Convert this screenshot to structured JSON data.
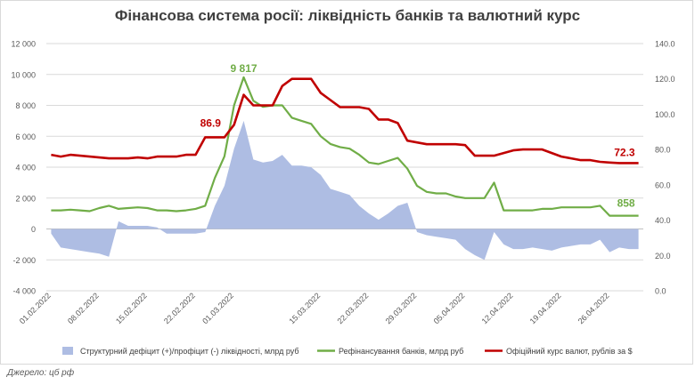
{
  "title": "Фінансова система росії: ліквідність банків та валютний курс",
  "source": "Джерело: цб рф",
  "chart_data": {
    "type": "line",
    "title": "Фінансова система росії: ліквідність банків та валютний курс",
    "x": [
      "01.02.2022",
      "02.02.2022",
      "03.02.2022",
      "04.02.2022",
      "07.02.2022",
      "08.02.2022",
      "09.02.2022",
      "10.02.2022",
      "11.02.2022",
      "14.02.2022",
      "15.02.2022",
      "16.02.2022",
      "17.02.2022",
      "18.02.2022",
      "21.02.2022",
      "22.02.2022",
      "24.02.2022",
      "25.02.2022",
      "28.02.2022",
      "01.03.2022",
      "02.03.2022",
      "03.03.2022",
      "04.03.2022",
      "05.03.2022",
      "09.03.2022",
      "10.03.2022",
      "11.03.2022",
      "14.03.2022",
      "15.03.2022",
      "16.03.2022",
      "17.03.2022",
      "18.03.2022",
      "21.03.2022",
      "22.03.2022",
      "23.03.2022",
      "24.03.2022",
      "25.03.2022",
      "28.03.2022",
      "29.03.2022",
      "30.03.2022",
      "31.03.2022",
      "01.04.2022",
      "04.04.2022",
      "05.04.2022",
      "06.04.2022",
      "07.04.2022",
      "08.04.2022",
      "11.04.2022",
      "12.04.2022",
      "13.04.2022",
      "14.04.2022",
      "15.04.2022",
      "18.04.2022",
      "19.04.2022",
      "20.04.2022",
      "21.04.2022",
      "22.04.2022",
      "25.04.2022",
      "26.04.2022",
      "27.04.2022",
      "28.04.2022",
      "29.04.2022"
    ],
    "x_tick_labels": [
      "01.02.2022",
      "08.02.2022",
      "15.02.2022",
      "22.02.2022",
      "01.03.2022",
      "08.03.2022",
      "15.03.2022",
      "22.03.2022",
      "29.03.2022",
      "05.04.2022",
      "12.04.2022",
      "19.04.2022",
      "26.04.2022"
    ],
    "y_left": {
      "min": -4000,
      "max": 12000,
      "step": 2000,
      "tick_labels": [
        "-4 000",
        "-2 000",
        "0",
        "2 000",
        "4 000",
        "6 000",
        "8 000",
        "10 000",
        "12 000"
      ]
    },
    "y_right": {
      "min": 0,
      "max": 140,
      "step": 20,
      "tick_labels": [
        "0.0",
        "20.0",
        "40.0",
        "60.0",
        "80.0",
        "100.0",
        "120.0",
        "140.0"
      ]
    },
    "series": [
      {
        "name": "Структурний дефіцит (+)/профіцит (-) ліквідності, млрд руб",
        "type": "area",
        "axis": "left",
        "color": "#aebde3",
        "values": [
          -300,
          -1200,
          -1300,
          -1400,
          -1500,
          -1600,
          -1800,
          500,
          200,
          200,
          200,
          100,
          -300,
          -300,
          -300,
          -300,
          -200,
          1500,
          2800,
          5200,
          7000,
          4500,
          4300,
          4400,
          4800,
          4100,
          4100,
          4000,
          3500,
          2600,
          2400,
          2200,
          1500,
          1000,
          600,
          1000,
          1500,
          1700,
          -200,
          -400,
          -500,
          -600,
          -700,
          -1300,
          -1700,
          -2000,
          -200,
          -1000,
          -1300,
          -1300,
          -1200,
          -1300,
          -1400,
          -1200,
          -1100,
          -1000,
          -1000,
          -700,
          -1500,
          -1200,
          -1300,
          -1300
        ]
      },
      {
        "name": "Рефінансування банків, млрд руб",
        "type": "line",
        "axis": "left",
        "color": "#70ad47",
        "values": [
          1200,
          1200,
          1250,
          1200,
          1150,
          1350,
          1500,
          1300,
          1350,
          1400,
          1350,
          1200,
          1200,
          1150,
          1200,
          1300,
          1500,
          3300,
          4700,
          8000,
          9817,
          8300,
          7900,
          8000,
          8000,
          7200,
          7000,
          6800,
          6000,
          5500,
          5300,
          5200,
          4800,
          4300,
          4200,
          4400,
          4600,
          3900,
          2800,
          2400,
          2300,
          2300,
          2100,
          2000,
          2000,
          2000,
          3000,
          1200,
          1200,
          1200,
          1200,
          1300,
          1300,
          1400,
          1400,
          1400,
          1400,
          1500,
          858,
          858,
          858,
          858
        ],
        "labels": {
          "max": "9 817",
          "last": "858"
        }
      },
      {
        "name": "Офіційний курс валют, рублів за $",
        "type": "line",
        "axis": "right",
        "color": "#c00000",
        "values": [
          77,
          76,
          77,
          76.5,
          76,
          75.5,
          75,
          75,
          75,
          75.5,
          75,
          76,
          76,
          76,
          77,
          77,
          86.9,
          86.9,
          86.9,
          94,
          111,
          105,
          105,
          105,
          116,
          120,
          120,
          120,
          112,
          108,
          104,
          104,
          104,
          103,
          97,
          97,
          95,
          85,
          84,
          83,
          83,
          83,
          83,
          82.5,
          76.5,
          76.5,
          76.5,
          78,
          79.5,
          80,
          80,
          80,
          78,
          76,
          75,
          74,
          74,
          73,
          72.6,
          72.3,
          72.3,
          72.3
        ],
        "labels": {
          "early": "86.9",
          "last": "72.3"
        }
      }
    ],
    "legend_position": "bottom",
    "grid": true
  }
}
